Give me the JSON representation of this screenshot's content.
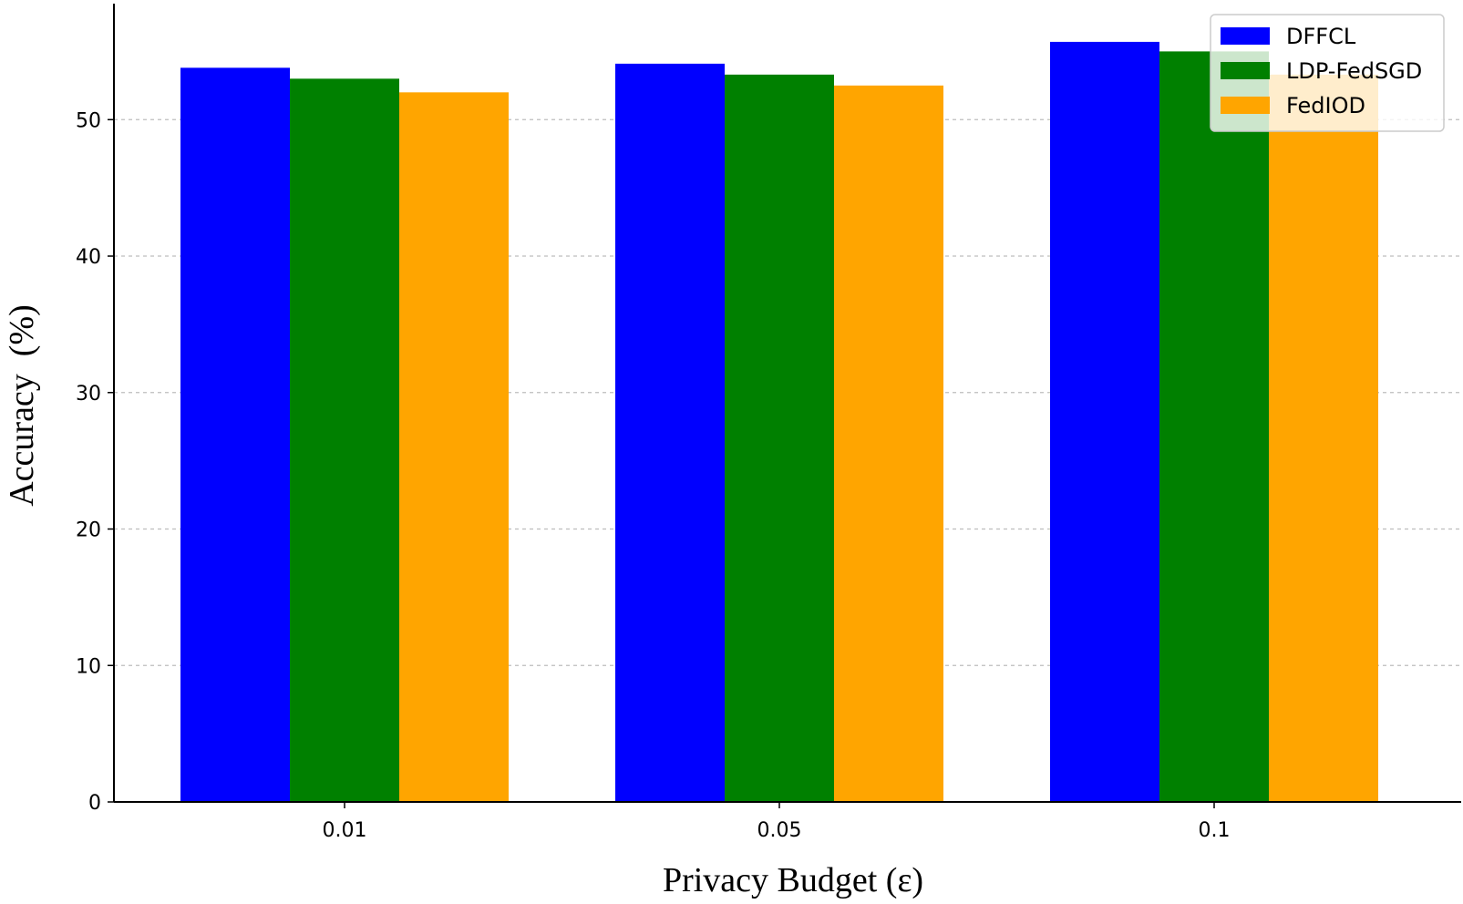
{
  "chart_data": {
    "type": "bar",
    "title": "",
    "xlabel": "Privacy Budget (ε)",
    "ylabel": "Accuracy  (%)",
    "categories": [
      "0.01",
      "0.05",
      "0.1"
    ],
    "series": [
      {
        "name": "DFFCL",
        "color": "#0000ff",
        "values": [
          53.8,
          54.1,
          55.7
        ]
      },
      {
        "name": "LDP-FedSGD",
        "color": "#008000",
        "values": [
          53.0,
          53.3,
          55.0
        ]
      },
      {
        "name": "FedIOD",
        "color": "#ffa500",
        "values": [
          52.0,
          52.5,
          53.3
        ]
      }
    ],
    "ylim": [
      0,
      58.5
    ],
    "yticks": [
      0,
      10,
      20,
      30,
      40,
      50
    ],
    "grid": true,
    "legend_position": "top-right"
  }
}
